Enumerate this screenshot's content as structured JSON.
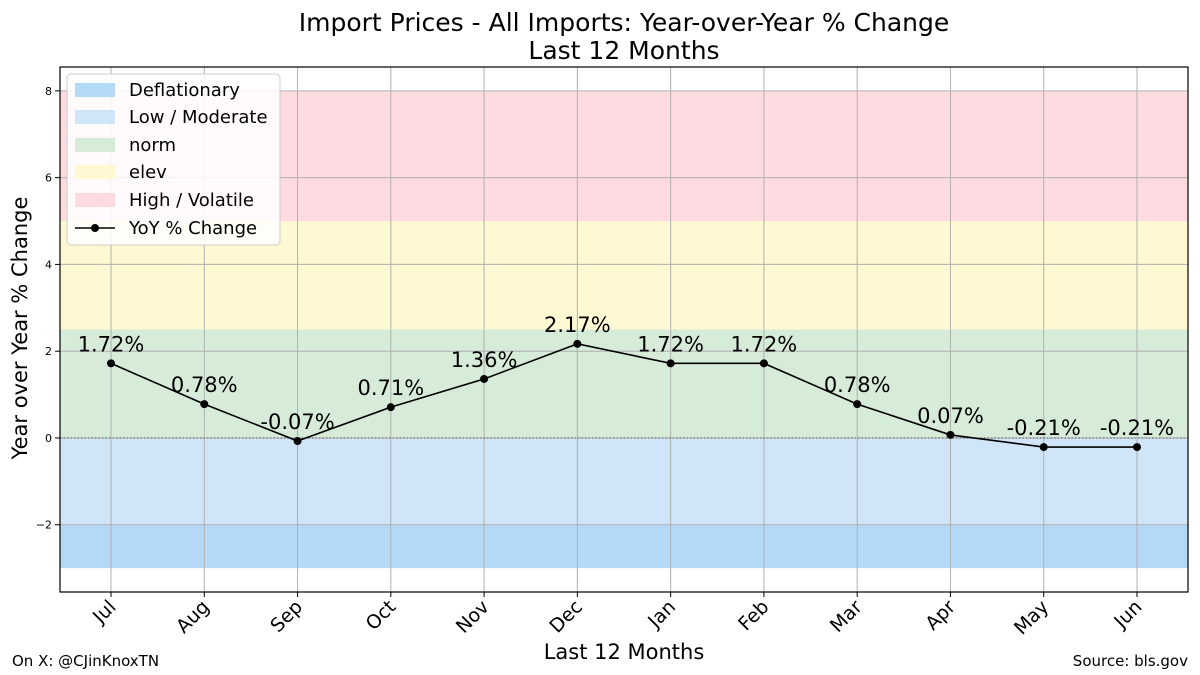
{
  "chart_data": {
    "type": "line",
    "title": "Import Prices - All Imports: Year-over-Year % Change",
    "subtitle": "Last 12 Months",
    "xlabel": "Last 12 Months",
    "ylabel": "Year over Year % Change",
    "ylim": [
      -3.55,
      8.55
    ],
    "yticks": [
      -2,
      0,
      2,
      4,
      6,
      8
    ],
    "ytick_labels": [
      "−2",
      "0",
      "2",
      "4",
      "6",
      "8"
    ],
    "grid": true,
    "categories": [
      "Jul",
      "Aug",
      "Sep",
      "Oct",
      "Nov",
      "Dec",
      "Jan",
      "Feb",
      "Mar",
      "Apr",
      "May",
      "Jun"
    ],
    "series": [
      {
        "name": "YoY % Change",
        "values": [
          1.72,
          0.78,
          -0.07,
          0.71,
          1.36,
          2.17,
          1.72,
          1.72,
          0.78,
          0.07,
          -0.21,
          -0.21
        ],
        "labels": [
          "1.72%",
          "0.78%",
          "-0.07%",
          "0.71%",
          "1.36%",
          "2.17%",
          "1.72%",
          "1.72%",
          "0.78%",
          "0.07%",
          "-0.21%",
          "-0.21%"
        ],
        "color": "#000000"
      }
    ],
    "bands": [
      {
        "name": "Deflationary",
        "from": -3,
        "to": -2,
        "color": "#b3d9f7"
      },
      {
        "name": "Low / Moderate",
        "from": -2,
        "to": 0,
        "color": "#d1e5f9"
      },
      {
        "name": "norm",
        "from": 0,
        "to": 2.5,
        "color": "#d6ebd8"
      },
      {
        "name": "elev",
        "from": 2.5,
        "to": 5,
        "color": "#fef8d3"
      },
      {
        "name": "High / Volatile",
        "from": 5,
        "to": 8,
        "color": "#fedbe0"
      }
    ],
    "legend_position": "top-left"
  },
  "footer": {
    "left": "On X: @CJinKnoxTN",
    "right": "Source: bls.gov"
  }
}
